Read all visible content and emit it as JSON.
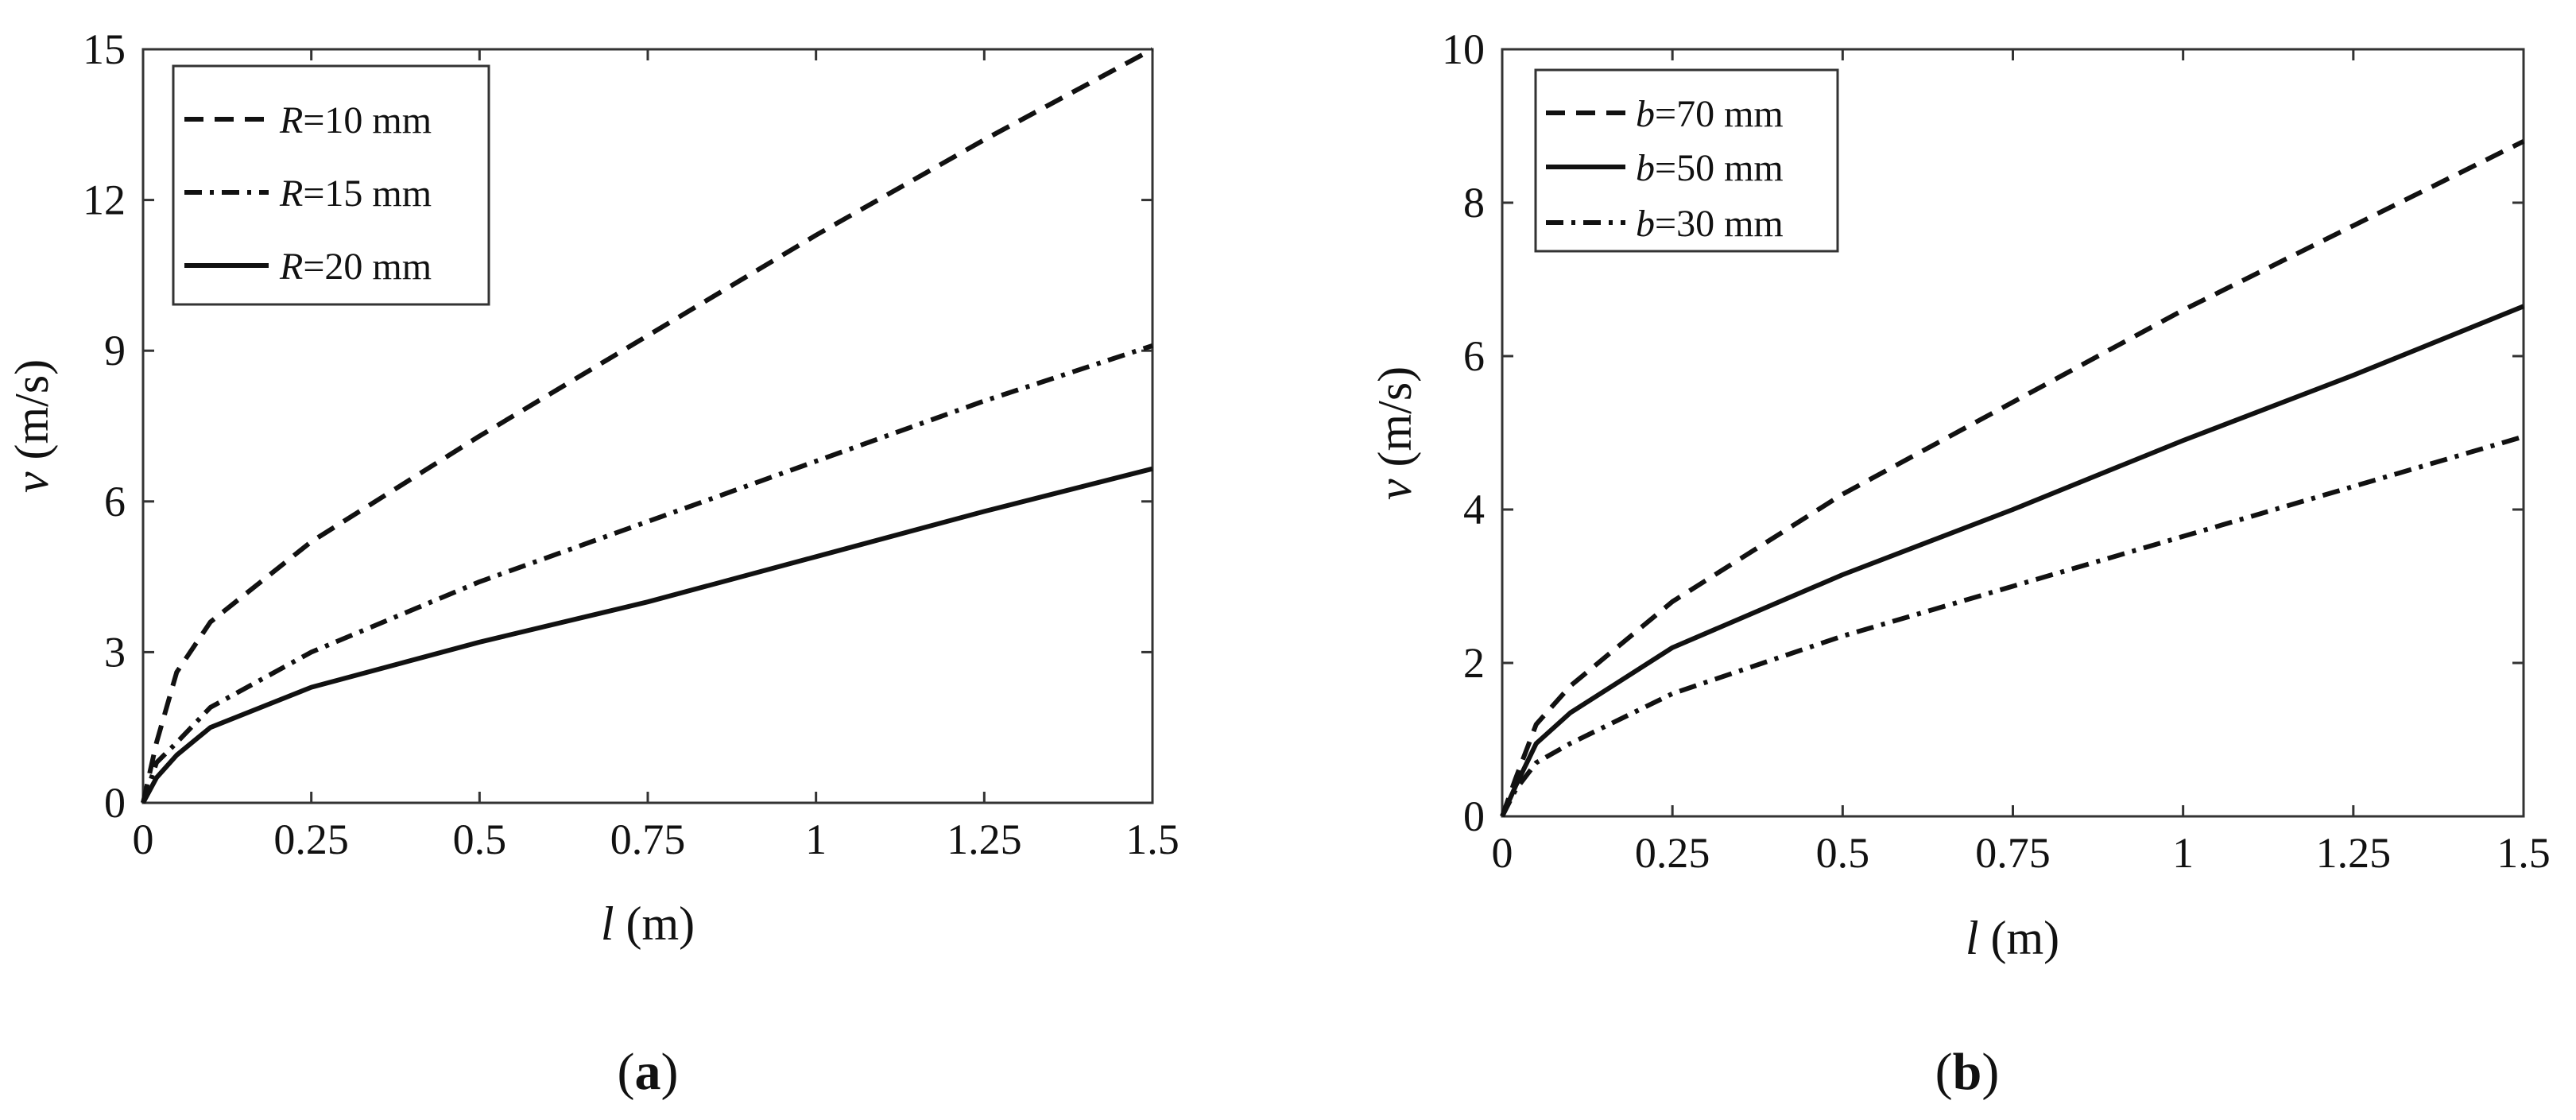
{
  "figures": [
    {
      "panel_label": "a",
      "ylabel_symbol": "v",
      "ylabel_unit": " (m/s)",
      "xlabel_symbol": "l",
      "xlabel_unit": " (m)",
      "legend_symbol": "R",
      "legend_suffix_10": "=10 mm",
      "legend_suffix_15": "=15 mm",
      "legend_suffix_20": "=20 mm"
    },
    {
      "panel_label": "b",
      "ylabel_symbol": "v",
      "ylabel_unit": " (m/s)",
      "xlabel_symbol": "l",
      "xlabel_unit": " (m)",
      "legend_symbol": "b",
      "legend_suffix_70": "=70 mm",
      "legend_suffix_50": "=50 mm",
      "legend_suffix_30": "=30 mm"
    }
  ],
  "chart_data": [
    {
      "type": "line",
      "title": "",
      "xlabel": "l (m)",
      "ylabel": "v (m/s)",
      "xlim": [
        0,
        1.5
      ],
      "ylim": [
        0,
        15
      ],
      "xticks": [
        0,
        0.25,
        0.5,
        0.75,
        1,
        1.25,
        1.5
      ],
      "xtick_labels": [
        "0",
        "0.25",
        "0.5",
        "0.75",
        "1",
        "1.25",
        "1.5"
      ],
      "yticks": [
        0,
        3,
        6,
        9,
        12,
        15
      ],
      "ytick_labels": [
        "0",
        "3",
        "6",
        "9",
        "12",
        "15"
      ],
      "legend_position": "top-left",
      "series": [
        {
          "name": "R=10 mm",
          "style": "dashed",
          "x": [
            0,
            0.02,
            0.05,
            0.1,
            0.25,
            0.5,
            0.75,
            1.0,
            1.25,
            1.5
          ],
          "values": [
            0,
            1.2,
            2.6,
            3.6,
            5.2,
            7.3,
            9.3,
            11.3,
            13.2,
            15.0
          ]
        },
        {
          "name": "R=15 mm",
          "style": "dash-dot",
          "x": [
            0,
            0.02,
            0.05,
            0.1,
            0.25,
            0.5,
            0.75,
            1.0,
            1.25,
            1.5
          ],
          "values": [
            0,
            0.8,
            1.2,
            1.9,
            3.0,
            4.4,
            5.6,
            6.8,
            8.0,
            9.1
          ]
        },
        {
          "name": "R=20 mm",
          "style": "solid",
          "x": [
            0,
            0.02,
            0.05,
            0.1,
            0.25,
            0.5,
            0.75,
            1.0,
            1.25,
            1.5
          ],
          "values": [
            0,
            0.5,
            0.95,
            1.5,
            2.3,
            3.2,
            4.0,
            4.9,
            5.8,
            6.65
          ]
        }
      ]
    },
    {
      "type": "line",
      "title": "",
      "xlabel": "l (m)",
      "ylabel": "v (m/s)",
      "xlim": [
        0,
        1.5
      ],
      "ylim": [
        0,
        10
      ],
      "xticks": [
        0,
        0.25,
        0.5,
        0.75,
        1,
        1.25,
        1.5
      ],
      "xtick_labels": [
        "0",
        "0.25",
        "0.5",
        "0.75",
        "1",
        "1.25",
        "1.5"
      ],
      "yticks": [
        0,
        2,
        4,
        6,
        8,
        10
      ],
      "ytick_labels": [
        "0",
        "2",
        "4",
        "6",
        "8",
        "10"
      ],
      "legend_position": "top-left",
      "series": [
        {
          "name": "b=70 mm",
          "style": "dashed",
          "x": [
            0,
            0.02,
            0.05,
            0.1,
            0.25,
            0.5,
            0.75,
            1.0,
            1.25,
            1.5
          ],
          "values": [
            0,
            0.5,
            1.2,
            1.7,
            2.8,
            4.2,
            5.4,
            6.6,
            7.7,
            8.8
          ]
        },
        {
          "name": "b=50 mm",
          "style": "solid",
          "x": [
            0,
            0.02,
            0.05,
            0.1,
            0.25,
            0.5,
            0.75,
            1.0,
            1.25,
            1.5
          ],
          "values": [
            0,
            0.4,
            0.95,
            1.35,
            2.2,
            3.15,
            4.0,
            4.9,
            5.75,
            6.65
          ]
        },
        {
          "name": "b=30 mm",
          "style": "dash-dot",
          "x": [
            0,
            0.02,
            0.05,
            0.1,
            0.25,
            0.5,
            0.75,
            1.0,
            1.25,
            1.5
          ],
          "values": [
            0,
            0.35,
            0.7,
            0.95,
            1.6,
            2.35,
            3.0,
            3.65,
            4.3,
            4.95
          ]
        }
      ]
    }
  ]
}
